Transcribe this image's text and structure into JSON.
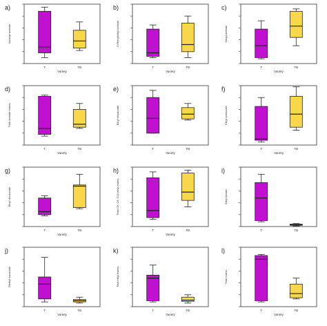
{
  "colors": {
    "T": "#c010d0",
    "TB": "#f8d84a",
    "stroke": "#222222"
  },
  "panels": [
    {
      "id": "a",
      "label": "a)",
      "ylabel": "Isoamyl acetate",
      "xlabel": "Variety"
    },
    {
      "id": "b",
      "label": "b)",
      "ylabel": "2-Phenylethyl acetate",
      "xlabel": "Variety"
    },
    {
      "id": "c",
      "label": "c)",
      "ylabel": "Hexyl acetate",
      "xlabel": "Variety"
    },
    {
      "id": "d",
      "label": "d)",
      "ylabel": "Total acetate esters",
      "xlabel": "Variety"
    },
    {
      "id": "e",
      "label": "e)",
      "ylabel": "Ethyl hexanoate",
      "xlabel": "Variety"
    },
    {
      "id": "f",
      "label": "f)",
      "ylabel": "Ethyl octanoate",
      "xlabel": "Variety"
    },
    {
      "id": "g",
      "label": "g)",
      "ylabel": "Ethyl decanoate",
      "xlabel": "Variety"
    },
    {
      "id": "h",
      "label": "h)",
      "ylabel": "Total C6, C8, C10 ethyl esters",
      "xlabel": "Variety"
    },
    {
      "id": "i",
      "label": "i)",
      "ylabel": "Ethyl lactate",
      "xlabel": ""
    },
    {
      "id": "j",
      "label": "j)",
      "ylabel": "Diethyl succinate",
      "xlabel": "Variety"
    },
    {
      "id": "k",
      "label": "k)",
      "ylabel": "Total ethyl esters",
      "xlabel": "Variety"
    },
    {
      "id": "l",
      "label": "l)",
      "ylabel": "Total esters",
      "xlabel": "Variety"
    }
  ],
  "chart_data": [
    {
      "type": "boxplot",
      "panel": "a",
      "categories": [
        "T",
        "TB"
      ],
      "ylim": [
        0,
        100
      ],
      "boxes": [
        {
          "min": 10,
          "q1": 18,
          "median": 28,
          "q3": 88,
          "max": 95
        },
        {
          "min": 22,
          "q1": 26,
          "median": 38,
          "q3": 56,
          "max": 70
        }
      ]
    },
    {
      "type": "boxplot",
      "panel": "b",
      "categories": [
        "T",
        "TB"
      ],
      "ylim": [
        0,
        100
      ],
      "boxes": [
        {
          "min": 10,
          "q1": 12,
          "median": 18,
          "q3": 58,
          "max": 65
        },
        {
          "min": 10,
          "q1": 20,
          "median": 32,
          "q3": 68,
          "max": 80
        }
      ]
    },
    {
      "type": "boxplot",
      "panel": "c",
      "categories": [
        "T",
        "TB"
      ],
      "ylim": [
        0,
        100
      ],
      "boxes": [
        {
          "min": 8,
          "q1": 10,
          "median": 30,
          "q3": 58,
          "max": 72
        },
        {
          "min": 30,
          "q1": 44,
          "median": 63,
          "q3": 88,
          "max": 92
        }
      ]
    },
    {
      "type": "boxplot",
      "panel": "d",
      "categories": [
        "T",
        "TB"
      ],
      "ylim": [
        0,
        100
      ],
      "boxes": [
        {
          "min": 15,
          "q1": 18,
          "median": 28,
          "q3": 82,
          "max": 84
        },
        {
          "min": 28,
          "q1": 30,
          "median": 35,
          "q3": 60,
          "max": 70
        }
      ]
    },
    {
      "type": "boxplot",
      "panel": "e",
      "categories": [
        "T",
        "TB"
      ],
      "ylim": [
        0,
        100
      ],
      "boxes": [
        {
          "min": 20,
          "q1": 20,
          "median": 45,
          "q3": 80,
          "max": 92
        },
        {
          "min": 42,
          "q1": 44,
          "median": 52,
          "q3": 63,
          "max": 70
        }
      ]
    },
    {
      "type": "boxplot",
      "panel": "f",
      "categories": [
        "T",
        "TB"
      ],
      "ylim": [
        0,
        100
      ],
      "boxes": [
        {
          "min": 5,
          "q1": 8,
          "median": 10,
          "q3": 65,
          "max": 80
        },
        {
          "min": 25,
          "q1": 30,
          "median": 52,
          "q3": 82,
          "max": 98
        }
      ]
    },
    {
      "type": "boxplot",
      "panel": "g",
      "categories": [
        "T",
        "TB"
      ],
      "ylim": [
        0,
        100
      ],
      "boxes": [
        {
          "min": 18,
          "q1": 20,
          "median": 25,
          "q3": 48,
          "max": 52
        },
        {
          "min": 30,
          "q1": 32,
          "median": 68,
          "q3": 70,
          "max": 88
        }
      ]
    },
    {
      "type": "boxplot",
      "panel": "h",
      "categories": [
        "T",
        "TB"
      ],
      "ylim": [
        0,
        100
      ],
      "boxes": [
        {
          "min": 12,
          "q1": 15,
          "median": 27,
          "q3": 82,
          "max": 92
        },
        {
          "min": 33,
          "q1": 44,
          "median": 58,
          "q3": 90,
          "max": 95
        }
      ]
    },
    {
      "type": "boxplot",
      "panel": "i",
      "categories": [
        "T",
        "TB"
      ],
      "ylim": [
        0,
        100
      ],
      "boxes": [
        {
          "min": 8,
          "q1": 10,
          "median": 48,
          "q3": 74,
          "max": 88
        },
        {
          "min": 1,
          "q1": 2,
          "median": 3,
          "q3": 4,
          "max": 5
        }
      ]
    },
    {
      "type": "boxplot",
      "panel": "j",
      "categories": [
        "T",
        "TB"
      ],
      "ylim": [
        0,
        100
      ],
      "boxes": [
        {
          "min": 8,
          "q1": 13,
          "median": 38,
          "q3": 50,
          "max": 83
        },
        {
          "min": 6,
          "q1": 8,
          "median": 10,
          "q3": 12,
          "max": 16
        }
      ]
    },
    {
      "type": "boxplot",
      "panel": "k",
      "categories": [
        "T",
        "TB"
      ],
      "ylim": [
        0,
        100
      ],
      "boxes": [
        {
          "min": 8,
          "q1": 10,
          "median": 48,
          "q3": 53,
          "max": 70
        },
        {
          "min": 6,
          "q1": 9,
          "median": 11,
          "q3": 16,
          "max": 20
        }
      ]
    },
    {
      "type": "boxplot",
      "panel": "l",
      "categories": [
        "T",
        "TB"
      ],
      "ylim": [
        0,
        100
      ],
      "boxes": [
        {
          "min": 8,
          "q1": 10,
          "median": 80,
          "q3": 86,
          "max": 88
        },
        {
          "min": 13,
          "q1": 15,
          "median": 22,
          "q3": 38,
          "max": 48
        }
      ]
    }
  ]
}
